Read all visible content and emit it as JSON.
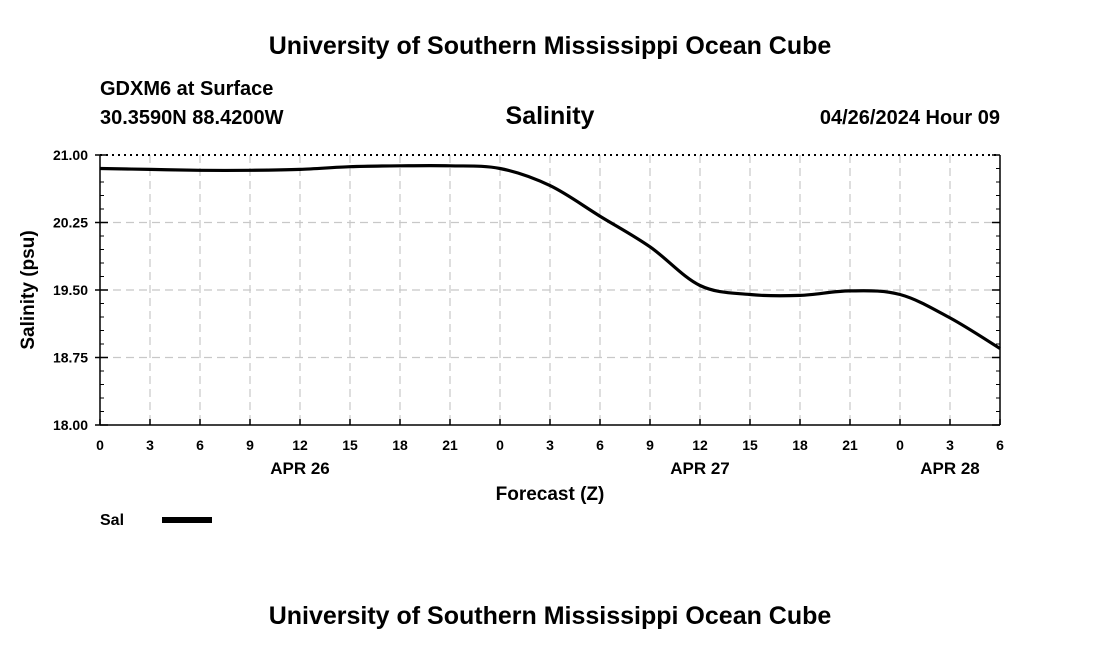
{
  "header": {
    "title_top": "University of Southern Mississippi Ocean Cube",
    "title_bottom": "University of Southern Mississippi Ocean Cube",
    "station": "GDXM6 at Surface",
    "coords": "30.3590N  88.4200W",
    "datetime": "04/26/2024 Hour 09"
  },
  "chart_data": {
    "type": "line",
    "title": "Salinity",
    "xlabel": "Forecast (Z)",
    "ylabel": "Salinity (psu)",
    "xlim": [
      0,
      54
    ],
    "ylim": [
      18.0,
      21.0
    ],
    "x_tick_labels": [
      "0",
      "3",
      "6",
      "9",
      "12",
      "15",
      "18",
      "21",
      "0",
      "3",
      "6",
      "9",
      "12",
      "15",
      "18",
      "21",
      "0",
      "3",
      "6"
    ],
    "y_tick_values": [
      18.0,
      18.75,
      19.5,
      20.25,
      21.0
    ],
    "y_tick_labels": [
      "18.00",
      "18.75",
      "19.50",
      "20.25",
      "21.00"
    ],
    "date_labels": [
      {
        "x": 12,
        "label": "APR 26"
      },
      {
        "x": 36,
        "label": "APR 27"
      },
      {
        "x": 51,
        "label": "APR 28"
      }
    ],
    "grid": true,
    "legend_position": "bottom-left",
    "series": [
      {
        "name": "Sal",
        "color": "#000000",
        "x": [
          0,
          3,
          6,
          9,
          12,
          15,
          18,
          21,
          24,
          27,
          30,
          33,
          36,
          39,
          42,
          45,
          48,
          51,
          54
        ],
        "values": [
          20.85,
          20.84,
          20.83,
          20.83,
          20.84,
          20.87,
          20.88,
          20.88,
          20.85,
          20.66,
          20.32,
          19.98,
          19.55,
          19.45,
          19.44,
          19.49,
          19.45,
          19.19,
          18.85
        ]
      }
    ]
  }
}
